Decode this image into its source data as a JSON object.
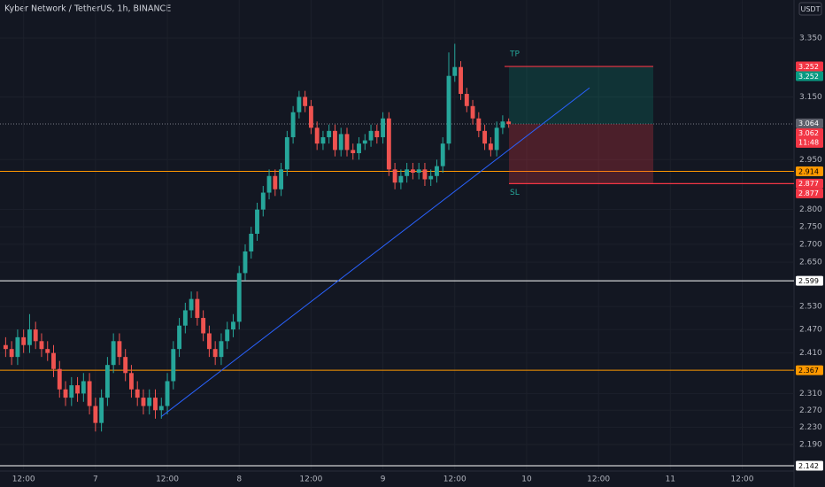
{
  "chart_data": {
    "type": "candlestick",
    "title": "Kyber Network / TetherUS, 1h, BINANCE",
    "currency": "USDT",
    "log_scale": true,
    "grid": true,
    "up_color": "#26a69a",
    "down_color": "#ef5350",
    "ylim": [
      2.134,
      3.486
    ],
    "yticks": [
      {
        "value": 3.35,
        "label": "3.350"
      },
      {
        "value": 3.15,
        "label": "3.150"
      },
      {
        "value": 2.95,
        "label": "2.950"
      },
      {
        "value": 2.8,
        "label": "2.800"
      },
      {
        "value": 2.75,
        "label": "2.750"
      },
      {
        "value": 2.7,
        "label": "2.700"
      },
      {
        "value": 2.65,
        "label": "2.650"
      },
      {
        "value": 2.53,
        "label": "2.530"
      },
      {
        "value": 2.47,
        "label": "2.470"
      },
      {
        "value": 2.41,
        "label": "2.410"
      },
      {
        "value": 2.31,
        "label": "2.310"
      },
      {
        "value": 2.27,
        "label": "2.270"
      },
      {
        "value": 2.23,
        "label": "2.230"
      },
      {
        "value": 2.19,
        "label": "2.190"
      }
    ],
    "categories": [
      null,
      null,
      null,
      "12:00",
      null,
      null,
      null,
      null,
      null,
      null,
      null,
      null,
      null,
      null,
      null,
      "7",
      null,
      null,
      null,
      null,
      null,
      null,
      null,
      null,
      null,
      null,
      null,
      "12:00",
      null,
      null,
      null,
      null,
      null,
      null,
      null,
      null,
      null,
      null,
      null,
      "8",
      null,
      null,
      null,
      null,
      null,
      null,
      null,
      null,
      null,
      null,
      null,
      "12:00",
      null,
      null,
      null,
      null,
      null,
      null,
      null,
      null,
      null,
      null,
      null,
      "9",
      null,
      null,
      null,
      null,
      null,
      null,
      null,
      null,
      null,
      null,
      null,
      "12:00",
      null,
      null,
      null,
      null,
      null,
      null,
      null,
      null,
      null,
      null,
      null,
      "10",
      null,
      null,
      null,
      null,
      null,
      null,
      null,
      null,
      null,
      null,
      null,
      "12:00",
      null,
      null,
      null,
      null,
      null,
      null,
      null,
      null,
      null,
      null,
      null,
      "11",
      null,
      null,
      null,
      null,
      null,
      null,
      null,
      null,
      null,
      null,
      null,
      "12:00",
      null,
      null,
      null,
      null,
      null,
      null,
      null,
      null
    ],
    "open": [
      2.43,
      2.42,
      2.4,
      2.45,
      2.43,
      2.47,
      2.44,
      2.42,
      2.41,
      2.37,
      2.32,
      2.3,
      2.33,
      2.31,
      2.34,
      2.28,
      2.24,
      2.3,
      2.38,
      2.44,
      2.4,
      2.36,
      2.32,
      2.3,
      2.28,
      2.3,
      2.27,
      2.28,
      2.34,
      2.42,
      2.48,
      2.52,
      2.55,
      2.5,
      2.46,
      2.42,
      2.4,
      2.44,
      2.47,
      2.49,
      2.62,
      2.68,
      2.73,
      2.8,
      2.85,
      2.9,
      2.86,
      2.92,
      3.02,
      3.1,
      3.15,
      3.12,
      3.05,
      3.0,
      3.02,
      3.04,
      2.98,
      3.03,
      2.98,
      2.97,
      3.0,
      3.01,
      3.04,
      3.02,
      3.08,
      2.92,
      2.88,
      2.9,
      2.92,
      2.91,
      2.92,
      2.89,
      2.9,
      2.93,
      3.0,
      3.22,
      3.25,
      3.16,
      3.12,
      3.08,
      3.04,
      3.0,
      2.98,
      3.05,
      3.07,
      null,
      null,
      null,
      null,
      null,
      null,
      null,
      null,
      null,
      null,
      null,
      null,
      null,
      null,
      null,
      null,
      null,
      null,
      null,
      null,
      null,
      null,
      null,
      null,
      null,
      null,
      null,
      null,
      null,
      null,
      null,
      null,
      null,
      null,
      null,
      null,
      null,
      null,
      null,
      null,
      null,
      null,
      null,
      null,
      null,
      null,
      null
    ],
    "high": [
      2.45,
      2.44,
      2.47,
      2.47,
      2.51,
      2.49,
      2.46,
      2.44,
      2.43,
      2.39,
      2.34,
      2.35,
      2.35,
      2.36,
      2.36,
      2.3,
      2.32,
      2.4,
      2.46,
      2.46,
      2.42,
      2.38,
      2.34,
      2.32,
      2.32,
      2.32,
      2.3,
      2.36,
      2.44,
      2.5,
      2.54,
      2.57,
      2.57,
      2.52,
      2.48,
      2.44,
      2.46,
      2.49,
      2.51,
      2.64,
      2.7,
      2.75,
      2.82,
      2.87,
      2.92,
      2.92,
      2.94,
      3.04,
      3.12,
      3.17,
      3.17,
      3.14,
      3.07,
      3.04,
      3.06,
      3.06,
      3.05,
      3.05,
      3.0,
      3.02,
      3.03,
      3.06,
      3.06,
      3.1,
      3.1,
      2.94,
      2.92,
      2.94,
      2.94,
      2.94,
      2.94,
      2.92,
      2.95,
      3.02,
      3.3,
      3.33,
      3.27,
      3.18,
      3.14,
      3.1,
      3.06,
      3.02,
      3.07,
      3.09,
      3.08,
      null,
      null,
      null,
      null,
      null,
      null,
      null,
      null,
      null,
      null,
      null,
      null,
      null,
      null,
      null,
      null,
      null,
      null,
      null,
      null,
      null,
      null,
      null,
      null,
      null,
      null,
      null,
      null,
      null,
      null,
      null,
      null,
      null,
      null,
      null,
      null,
      null,
      null,
      null,
      null,
      null,
      null,
      null,
      null,
      null,
      null,
      null
    ],
    "low": [
      2.4,
      2.38,
      2.38,
      2.41,
      2.41,
      2.42,
      2.4,
      2.39,
      2.35,
      2.3,
      2.28,
      2.28,
      2.29,
      2.29,
      2.26,
      2.22,
      2.22,
      2.28,
      2.36,
      2.38,
      2.34,
      2.3,
      2.28,
      2.26,
      2.26,
      2.25,
      2.25,
      2.26,
      2.32,
      2.4,
      2.46,
      2.5,
      2.48,
      2.44,
      2.4,
      2.38,
      2.38,
      2.42,
      2.45,
      2.47,
      2.6,
      2.66,
      2.71,
      2.78,
      2.83,
      2.84,
      2.84,
      2.9,
      3.0,
      3.08,
      3.1,
      3.03,
      2.98,
      2.98,
      3.0,
      2.96,
      2.96,
      2.96,
      2.95,
      2.95,
      2.98,
      2.99,
      3.0,
      3.0,
      2.9,
      2.86,
      2.86,
      2.88,
      2.89,
      2.89,
      2.87,
      2.87,
      2.88,
      2.91,
      2.98,
      3.2,
      3.14,
      3.1,
      3.06,
      3.02,
      2.98,
      2.96,
      2.96,
      3.03,
      3.05,
      null,
      null,
      null,
      null,
      null,
      null,
      null,
      null,
      null,
      null,
      null,
      null,
      null,
      null,
      null,
      null,
      null,
      null,
      null,
      null,
      null,
      null,
      null,
      null,
      null,
      null,
      null,
      null,
      null,
      null,
      null,
      null,
      null,
      null,
      null,
      null,
      null,
      null,
      null,
      null,
      null,
      null,
      null,
      null,
      null,
      null,
      null
    ],
    "close": [
      2.42,
      2.4,
      2.45,
      2.43,
      2.47,
      2.44,
      2.42,
      2.41,
      2.37,
      2.32,
      2.3,
      2.33,
      2.31,
      2.34,
      2.28,
      2.24,
      2.3,
      2.38,
      2.44,
      2.4,
      2.36,
      2.32,
      2.3,
      2.28,
      2.3,
      2.27,
      2.28,
      2.34,
      2.42,
      2.48,
      2.52,
      2.55,
      2.5,
      2.46,
      2.42,
      2.4,
      2.44,
      2.47,
      2.49,
      2.62,
      2.68,
      2.73,
      2.8,
      2.85,
      2.9,
      2.86,
      2.92,
      3.02,
      3.1,
      3.15,
      3.12,
      3.05,
      3.0,
      3.02,
      3.04,
      2.98,
      3.03,
      2.98,
      2.97,
      3.0,
      3.01,
      3.04,
      3.02,
      3.08,
      2.92,
      2.88,
      2.9,
      2.92,
      2.91,
      2.92,
      2.89,
      2.9,
      2.93,
      3.0,
      3.22,
      3.25,
      3.16,
      3.12,
      3.08,
      3.04,
      3.0,
      2.98,
      3.05,
      3.07,
      3.062,
      null,
      null,
      null,
      null,
      null,
      null,
      null,
      null,
      null,
      null,
      null,
      null,
      null,
      null,
      null,
      null,
      null,
      null,
      null,
      null,
      null,
      null,
      null,
      null,
      null,
      null,
      null,
      null,
      null,
      null,
      null,
      null,
      null,
      null,
      null,
      null,
      null,
      null,
      null,
      null,
      null,
      null,
      null,
      null,
      null,
      null,
      null
    ],
    "trendline": {
      "start": 2.255,
      "end": 3.18,
      "color": "#2962ff"
    },
    "position": {
      "take_profit": 3.252,
      "entry": 3.062,
      "stop_loss": 2.877,
      "tp_label": "TP",
      "sl_label": "SL"
    },
    "price_levels": [
      {
        "value": 3.252,
        "label": "3.252",
        "color": "#f23645",
        "text_color": "#ffffff",
        "line": false
      },
      {
        "value": 3.252,
        "label": "3.252",
        "color": "#089981",
        "text_color": "#ffffff",
        "line": false
      },
      {
        "value": 3.064,
        "label": "3.064",
        "color": "#5d606b",
        "text_color": "#ffffff",
        "line": false
      },
      {
        "value": 3.062,
        "label": "3.062",
        "countdown": "11:48",
        "color": "#f23645",
        "text_color": "#ffffff",
        "line": true
      },
      {
        "value": 2.914,
        "label": "2.914",
        "color": "#ff9800",
        "text_color": "#000000",
        "line": true
      },
      {
        "value": 2.877,
        "label": "2.877",
        "color": "#f23645",
        "text_color": "#ffffff",
        "line": false
      },
      {
        "value": 2.877,
        "label": "2.877",
        "color": "#f23645",
        "text_color": "#ffffff",
        "line": false
      },
      {
        "value": 2.599,
        "label": "2.599",
        "color": "#ffffff",
        "text_color": "#000000",
        "line": true
      },
      {
        "value": 2.367,
        "label": "2.367",
        "color": "#ff9800",
        "text_color": "#000000",
        "line": true
      },
      {
        "value": 2.142,
        "label": "2.142",
        "color": "#ffffff",
        "text_color": "#000000",
        "line": true
      }
    ]
  }
}
